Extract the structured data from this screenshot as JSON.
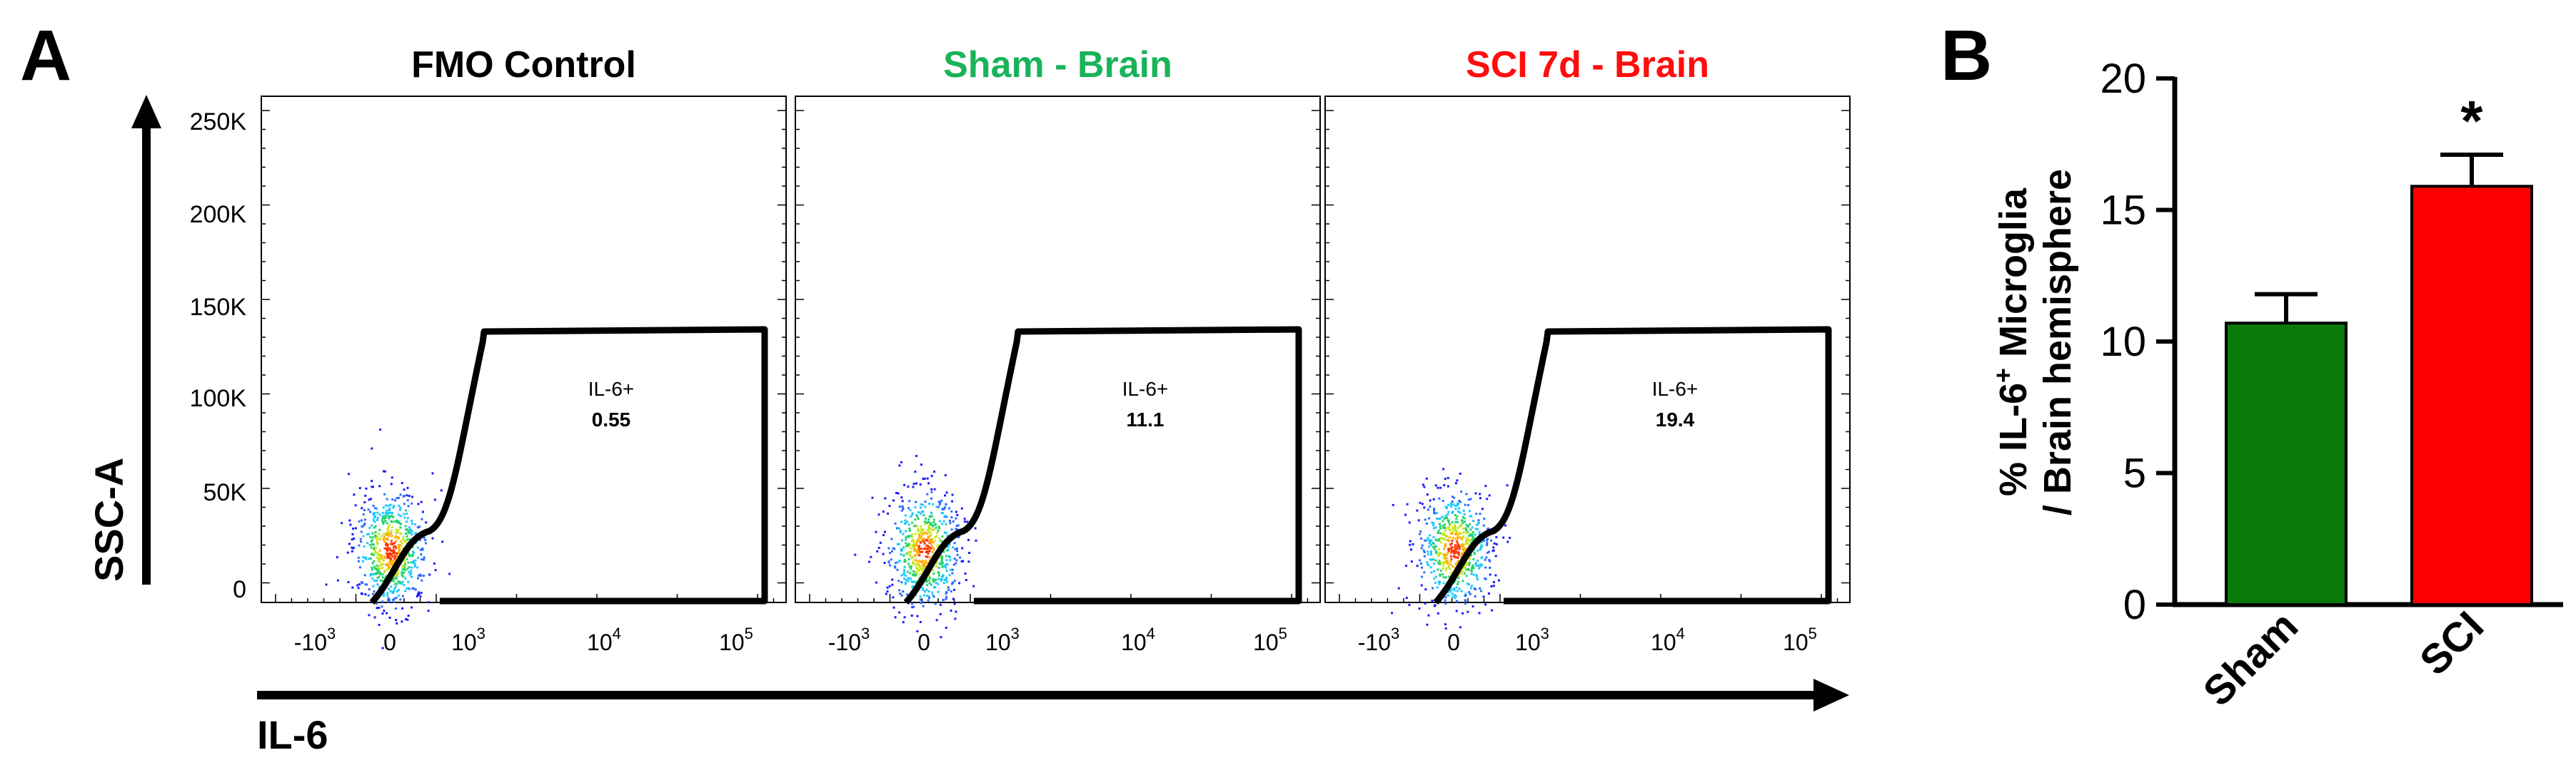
{
  "panel_a": {
    "letter": "A",
    "y_axis_label": "SSC-A",
    "x_axis_label": "IL-6",
    "y_ticks": [
      "250K",
      "200K",
      "150K",
      "100K",
      "50K",
      "0"
    ],
    "x_ticks": [
      {
        "base": "-10",
        "exp": "3"
      },
      {
        "base": "0",
        "exp": ""
      },
      {
        "base": "10",
        "exp": "3"
      },
      {
        "base": "10",
        "exp": "4"
      },
      {
        "base": "10",
        "exp": "5"
      }
    ],
    "gate_label": "IL-6+",
    "plots": [
      {
        "title": "FMO Control",
        "title_color": "#000000",
        "gate_value": "0.55"
      },
      {
        "title": "Sham - Brain",
        "title_color": "#19b35a",
        "gate_value": "11.1"
      },
      {
        "title": "SCI 7d - Brain",
        "title_color": "#ff0d0d",
        "gate_value": "19.4"
      }
    ]
  },
  "panel_b": {
    "letter": "B",
    "significance_mark": "*"
  },
  "chart_data": {
    "type": "bar",
    "categories": [
      "Sham",
      "SCI"
    ],
    "values": [
      10.7,
      15.9
    ],
    "errors": [
      1.1,
      1.2
    ],
    "colors": [
      "#0a7a0a",
      "#ff0000"
    ],
    "ylabel_prefix": "% IL-6",
    "ylabel_sup": "+",
    "ylabel_suffix": " Microglia",
    "ylabel_line2": "/ Brain hemisphere",
    "ylim": [
      0,
      20
    ],
    "yticks": [
      0,
      5,
      10,
      15,
      20
    ],
    "ytick_labels": [
      "0",
      "5",
      "10",
      "15",
      "20"
    ]
  }
}
